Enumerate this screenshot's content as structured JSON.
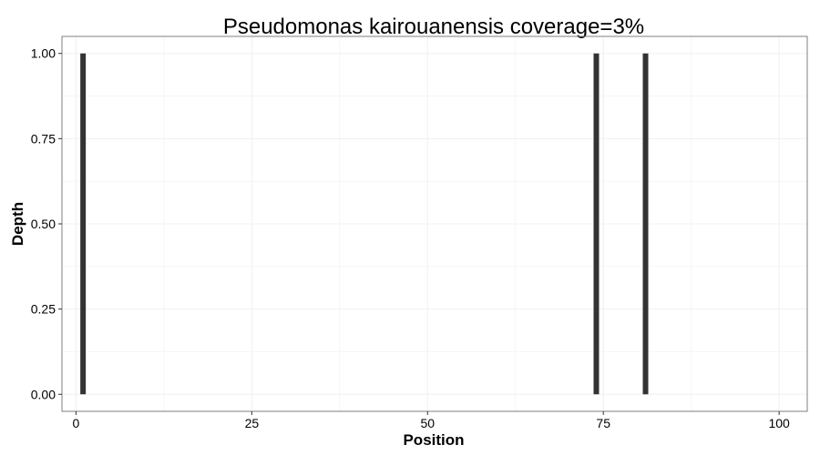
{
  "chart_data": {
    "type": "bar",
    "title": "Pseudomonas kairouanensis coverage=3%",
    "xlabel": "Position",
    "ylabel": "Depth",
    "x": [
      1,
      74,
      81
    ],
    "values": [
      1,
      1,
      1
    ],
    "xlim": [
      -2,
      104
    ],
    "ylim": [
      -0.05,
      1.05
    ],
    "x_ticks": [
      0,
      25,
      50,
      75,
      100
    ],
    "x_tick_labels": [
      "0",
      "25",
      "50",
      "75",
      "100"
    ],
    "y_ticks": [
      0,
      0.25,
      0.5,
      0.75,
      1.0
    ],
    "y_tick_labels": [
      "0.00",
      "0.25",
      "0.50",
      "0.75",
      "1.00"
    ],
    "grid": true,
    "legend": "none",
    "bar_color": "#333333",
    "grid_color": "#f0f0f0",
    "panel_border_color": "#7f7f7f"
  }
}
